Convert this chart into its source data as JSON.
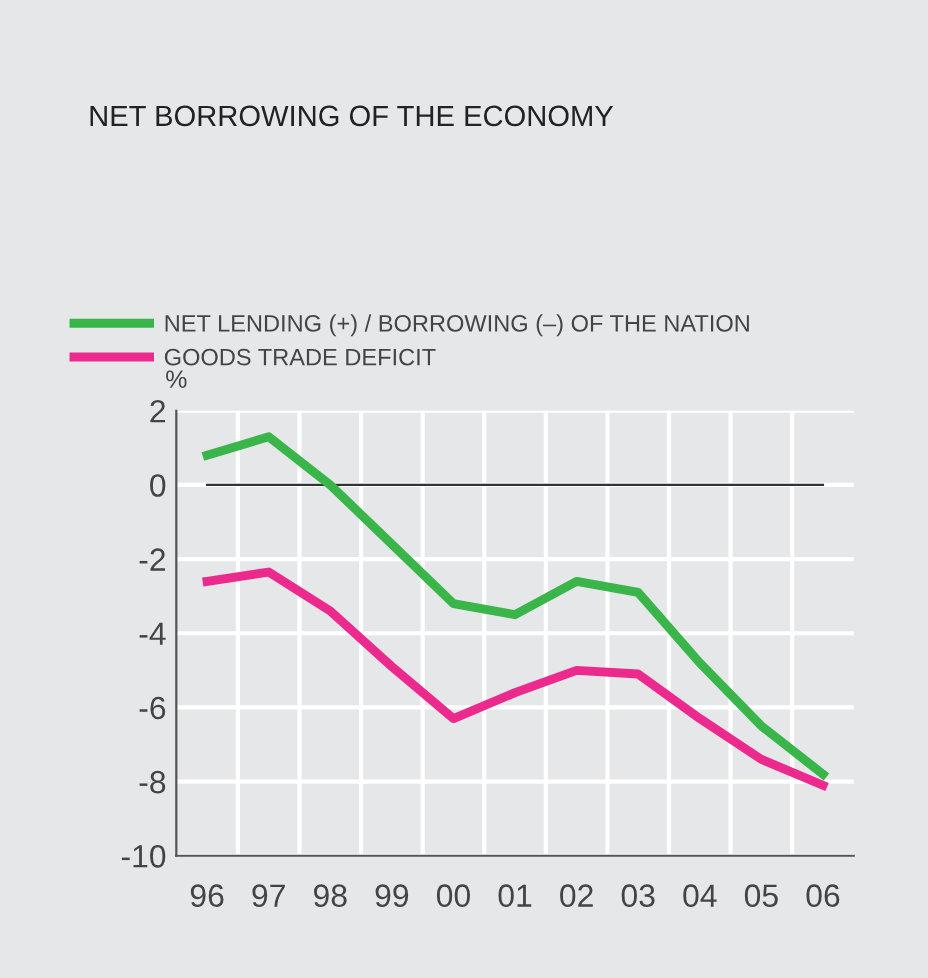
{
  "chart_data": {
    "type": "line",
    "title": "NET BORROWING OF THE ECONOMY",
    "ylabel": "%",
    "categories": [
      "96",
      "97",
      "98",
      "99",
      "00",
      "01",
      "02",
      "03",
      "04",
      "05",
      "06"
    ],
    "series": [
      {
        "name": "NET LENDING (+) / BORROWING (–) OF THE NATION",
        "color": "#39b54a",
        "values": [
          0.8,
          1.3,
          0.0,
          -1.6,
          -3.2,
          -3.5,
          -2.6,
          -2.9,
          -4.8,
          -6.5,
          -7.8
        ]
      },
      {
        "name": "GOODS TRADE DEFICIT",
        "color": "#ec2a8d",
        "values": [
          -2.6,
          -2.35,
          -3.4,
          -4.9,
          -6.3,
          -5.6,
          -5.0,
          -5.1,
          -6.3,
          -7.4,
          -8.1
        ]
      }
    ],
    "ylim": [
      -10,
      2
    ],
    "yticks": [
      -10,
      -8,
      -6,
      -4,
      -2,
      0,
      2
    ],
    "ref_lines": [
      {
        "axis": "y",
        "value": 0,
        "color": "#333333"
      }
    ],
    "grid": true,
    "legend": "top left",
    "marker": "none",
    "line_style": "solid"
  }
}
